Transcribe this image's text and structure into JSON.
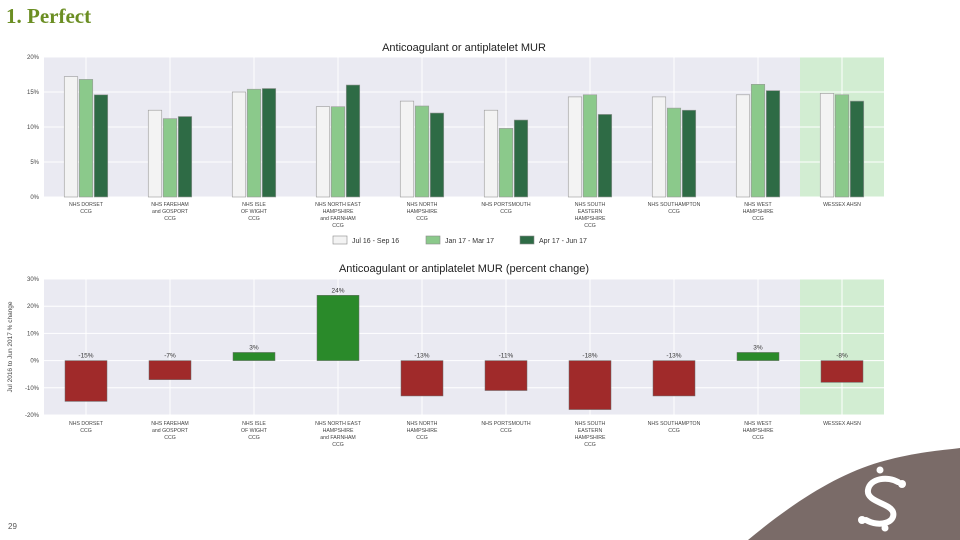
{
  "slide": {
    "title": "1. Perfect",
    "page_number": "29"
  },
  "chart_data": [
    {
      "type": "bar",
      "title": "Anticoagulant or antiplatelet MUR",
      "ylabel": "",
      "ylim": [
        0,
        20
      ],
      "yticks": [
        "0%",
        "5%",
        "10%",
        "15%",
        "20%"
      ],
      "categories": [
        "NHS DORSET\nCCG",
        "NHS FAREHAM\nand GOSPORT\nCCG",
        "NHS ISLE\nOF WIGHT\nCCG",
        "NHS NORTH EAST\nHAMPSHIRE\nand FARNHAM\nCCG",
        "NHS NORTH\nHAMPSHIRE\nCCG",
        "NHS PORTSMOUTH\nCCG",
        "NHS SOUTH\nEASTERN\nHAMPSHIRE\nCCG",
        "NHS SOUTHAMPTON\nCCG",
        "NHS WEST\nHAMPSHIRE\nCCG",
        "WESSEX AHSN"
      ],
      "series": [
        {
          "name": "Jul 16 - Sep 16",
          "color": "#f3f3f3",
          "values": [
            17.2,
            12.4,
            15.0,
            12.9,
            13.7,
            12.4,
            14.3,
            14.3,
            14.6,
            14.8
          ]
        },
        {
          "name": "Jan 17 - Mar 17",
          "color": "#8bc98b",
          "values": [
            16.8,
            11.2,
            15.4,
            12.9,
            13.0,
            9.8,
            14.6,
            12.7,
            16.1,
            14.6
          ]
        },
        {
          "name": "Apr 17 - Jun 17",
          "color": "#2e6b45",
          "values": [
            14.6,
            11.5,
            15.5,
            16.0,
            12.0,
            11.0,
            11.8,
            12.4,
            15.2,
            13.7
          ]
        }
      ],
      "highlight_category": "WESSEX AHSN",
      "legend_position": "bottom",
      "grid": true
    },
    {
      "type": "bar",
      "title": "Anticoagulant or antiplatelet MUR (percent change)",
      "ylabel": "Jul 2016 to Jun 2017 % change",
      "ylim": [
        -20,
        30
      ],
      "yticks": [
        "-20%",
        "-10%",
        "0%",
        "10%",
        "20%",
        "30%"
      ],
      "categories": [
        "NHS DORSET\nCCG",
        "NHS FAREHAM\nand GOSPORT\nCCG",
        "NHS ISLE\nOF WIGHT\nCCG",
        "NHS NORTH EAST\nHAMPSHIRE\nand FARNHAM\nCCG",
        "NHS NORTH\nHAMPSHIRE\nCCG",
        "NHS PORTSMOUTH\nCCG",
        "NHS SOUTH\nEASTERN\nHAMPSHIRE\nCCG",
        "NHS SOUTHAMPTON\nCCG",
        "NHS WEST\nHAMPSHIRE\nCCG",
        "WESSEX AHSN"
      ],
      "values": [
        -15,
        -7,
        3,
        24,
        -13,
        -11,
        -18,
        -13,
        3,
        -8
      ],
      "data_labels": [
        "-15%",
        "-7%",
        "3%",
        "24%",
        "-13%",
        "-11%",
        "-18%",
        "-13%",
        "3%",
        "-8%"
      ],
      "colors": {
        "positive": "#2a8a2a",
        "negative": "#a02a2a"
      },
      "highlight_category": "WESSEX AHSN",
      "grid": true
    }
  ],
  "colors": {
    "plot_bg": "#eaeaf2",
    "highlight_bg": "#d2edd2",
    "grid": "#ffffff",
    "title_accent": "#6b8e23",
    "corner_shape": "#7a6b68"
  },
  "icons": {
    "corner_logo": "swirl-logo-icon"
  }
}
